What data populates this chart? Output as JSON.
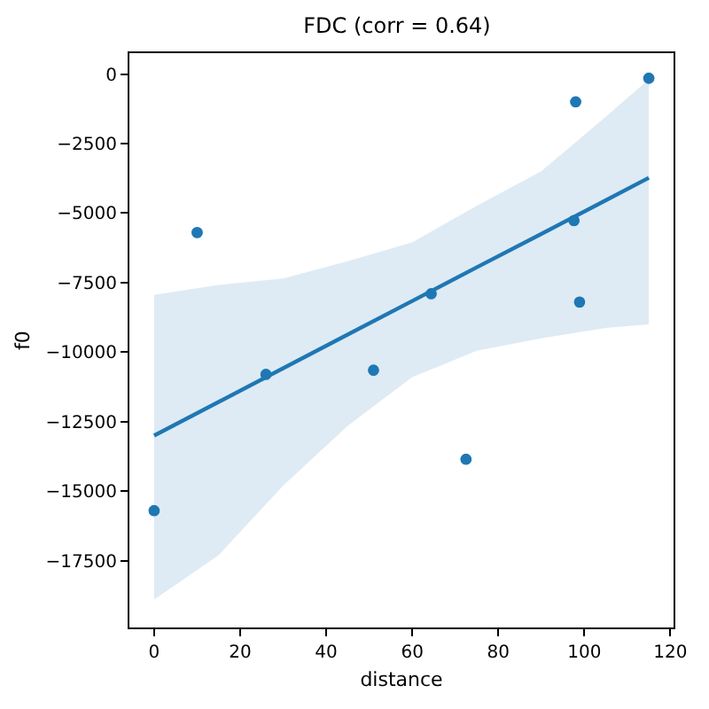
{
  "chart_data": {
    "type": "scatter",
    "title": "FDC (corr = 0.64)",
    "xlabel": "distance",
    "ylabel": "f0",
    "xlim": [
      -5.75,
      120.75
    ],
    "xticks": [
      0,
      20,
      40,
      60,
      80,
      100,
      120
    ],
    "ylim": [
      -19900,
      750
    ],
    "yticks": [
      0,
      -2500,
      -5000,
      -7500,
      -10000,
      -12500,
      -15000,
      -17500
    ],
    "series": [
      {
        "marker": "circle",
        "color": "#1f77b4",
        "x": [
          0,
          10,
          26,
          51,
          64.4,
          72.5,
          98,
          97.6,
          98.9,
          115
        ],
        "values": [
          -15700,
          -5700,
          -10800,
          -10650,
          -7900,
          -13850,
          -1000,
          -5270,
          -8200,
          -150
        ]
      },
      {
        "type": "line",
        "marker": "none",
        "color": "#1f77b4",
        "line_style": "solid",
        "x": [
          0,
          15,
          30,
          45,
          60,
          75,
          90,
          105,
          115
        ],
        "values": [
          -13000,
          -11790,
          -10580,
          -9370,
          -8160,
          -6950,
          -5750,
          -4540,
          -3730
        ],
        "lower": [
          -18900,
          -17300,
          -14800,
          -12650,
          -10900,
          -9950,
          -9500,
          -9130,
          -9000
        ],
        "upper": [
          -7940,
          -7580,
          -7350,
          -6730,
          -6050,
          -4740,
          -3500,
          -1540,
          -190
        ]
      }
    ]
  }
}
